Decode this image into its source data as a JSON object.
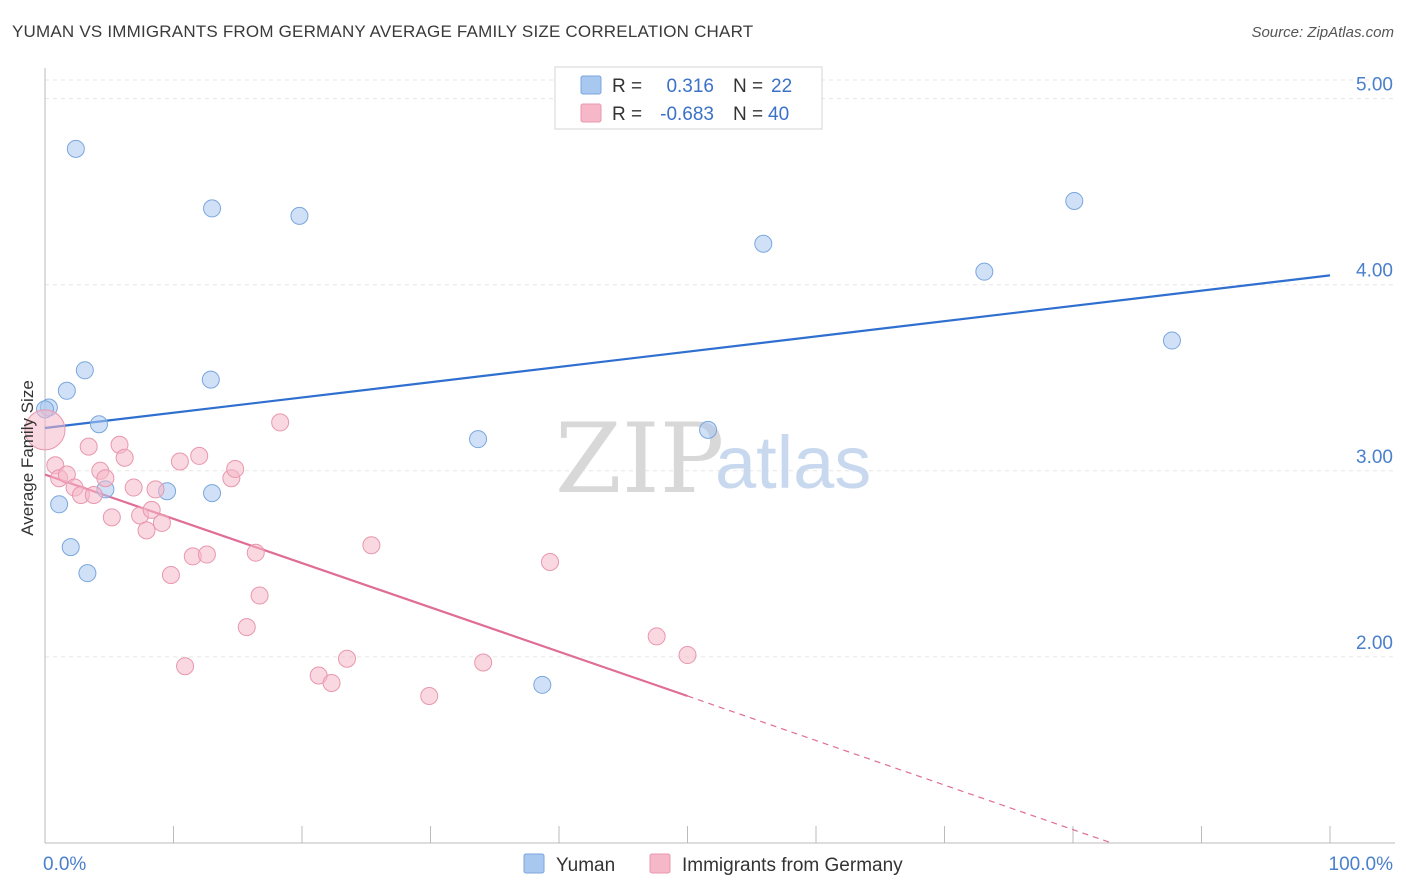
{
  "title": "YUMAN VS IMMIGRANTS FROM GERMANY AVERAGE FAMILY SIZE CORRELATION CHART",
  "source": "Source: ZipAtlas.com",
  "watermark": {
    "zip": "ZIP",
    "atlas": "atlas"
  },
  "legend_top": [
    {
      "r_label": "R =",
      "r_value": "0.316",
      "n_label": "N =",
      "n_value": "22",
      "color": "#a9c8f0"
    },
    {
      "r_label": "R =",
      "r_value": "-0.683",
      "n_label": "N =",
      "n_value": "40",
      "color": "#f6b8c8"
    }
  ],
  "chart_data": {
    "type": "scatter",
    "title": "YUMAN VS IMMIGRANTS FROM GERMANY AVERAGE FAMILY SIZE CORRELATION CHART",
    "xlabel": "",
    "ylabel": "Average Family Size",
    "xlim": [
      0,
      100
    ],
    "ylim": [
      1.0,
      5.1
    ],
    "x_tick_labels": [
      "0.0%",
      "100.0%"
    ],
    "y_ticks": [
      2.0,
      3.0,
      4.0,
      5.0
    ],
    "y_tick_labels": [
      "2.00",
      "3.00",
      "4.00",
      "5.00"
    ],
    "grid": true,
    "legend_position": "bottom-center",
    "series": [
      {
        "name": "Yuman",
        "color": "#a9c8f0",
        "stroke": "#7aa6de",
        "line_color": "#2f6fd0",
        "trend": {
          "x": [
            0,
            100
          ],
          "y": [
            3.23,
            4.05
          ]
        },
        "points": [
          [
            2.4,
            4.73
          ],
          [
            0.3,
            3.34
          ],
          [
            1.7,
            3.43
          ],
          [
            3.1,
            3.54
          ],
          [
            4.2,
            3.25
          ],
          [
            12.9,
            3.49
          ],
          [
            13.0,
            2.88
          ],
          [
            1.1,
            2.82
          ],
          [
            2.0,
            2.59
          ],
          [
            3.3,
            2.45
          ],
          [
            4.7,
            2.9
          ],
          [
            9.5,
            2.89
          ],
          [
            13.0,
            4.41
          ],
          [
            19.8,
            4.37
          ],
          [
            33.7,
            3.17
          ],
          [
            38.7,
            1.85
          ],
          [
            51.6,
            3.22
          ],
          [
            55.9,
            4.22
          ],
          [
            73.1,
            4.07
          ],
          [
            80.1,
            4.45
          ],
          [
            87.7,
            3.7
          ],
          [
            0.0,
            3.33
          ]
        ]
      },
      {
        "name": "Immigrants from Germany",
        "color": "#f6b8c8",
        "stroke": "#e897ad",
        "line_color": "#e06d96",
        "trend": {
          "x": [
            0,
            50
          ],
          "y": [
            2.98,
            1.79
          ]
        },
        "trend_dashed": {
          "x": [
            50,
            83
          ],
          "y": [
            1.79,
            1.0
          ]
        },
        "points": [
          [
            0.0,
            3.22
          ],
          [
            0.8,
            3.03
          ],
          [
            1.1,
            2.96
          ],
          [
            1.7,
            2.98
          ],
          [
            2.3,
            2.91
          ],
          [
            2.8,
            2.87
          ],
          [
            3.4,
            3.13
          ],
          [
            3.8,
            2.87
          ],
          [
            4.3,
            3.0
          ],
          [
            4.7,
            2.96
          ],
          [
            5.2,
            2.75
          ],
          [
            5.8,
            3.14
          ],
          [
            6.2,
            3.07
          ],
          [
            6.9,
            2.91
          ],
          [
            7.4,
            2.76
          ],
          [
            7.9,
            2.68
          ],
          [
            8.3,
            2.79
          ],
          [
            8.6,
            2.9
          ],
          [
            9.1,
            2.72
          ],
          [
            9.8,
            2.44
          ],
          [
            10.5,
            3.05
          ],
          [
            10.9,
            1.95
          ],
          [
            11.5,
            2.54
          ],
          [
            12.0,
            3.08
          ],
          [
            12.6,
            2.55
          ],
          [
            14.5,
            2.96
          ],
          [
            14.8,
            3.01
          ],
          [
            15.7,
            2.16
          ],
          [
            16.4,
            2.56
          ],
          [
            16.7,
            2.33
          ],
          [
            18.3,
            3.26
          ],
          [
            21.3,
            1.9
          ],
          [
            22.3,
            1.86
          ],
          [
            23.5,
            1.99
          ],
          [
            25.4,
            2.6
          ],
          [
            29.9,
            1.79
          ],
          [
            34.1,
            1.97
          ],
          [
            39.3,
            2.51
          ],
          [
            47.6,
            2.11
          ],
          [
            50.0,
            2.01
          ]
        ]
      }
    ]
  }
}
